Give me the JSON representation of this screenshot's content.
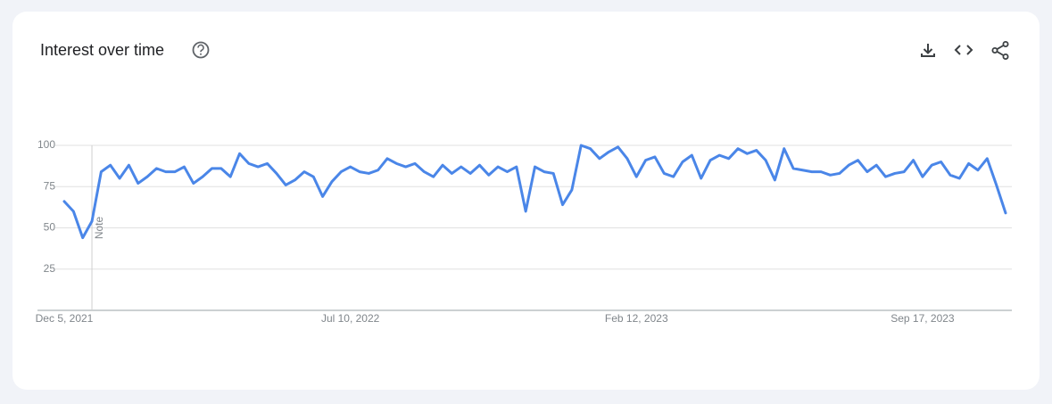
{
  "chart_data": {
    "type": "line",
    "title": "Interest over time",
    "categories": [
      "Dec 5, 2021",
      null,
      null,
      null,
      null,
      null,
      null,
      null,
      null,
      null,
      null,
      null,
      null,
      null,
      null,
      null,
      null,
      null,
      null,
      null,
      null,
      null,
      null,
      null,
      null,
      null,
      null,
      null,
      null,
      null,
      null,
      "Jul 10, 2022",
      null,
      null,
      null,
      null,
      null,
      null,
      null,
      null,
      null,
      null,
      null,
      null,
      null,
      null,
      null,
      null,
      null,
      null,
      null,
      null,
      null,
      null,
      null,
      null,
      null,
      null,
      null,
      null,
      null,
      null,
      "Feb 12, 2023",
      null,
      null,
      null,
      null,
      null,
      null,
      null,
      null,
      null,
      null,
      null,
      null,
      null,
      null,
      null,
      null,
      null,
      null,
      null,
      null,
      null,
      null,
      null,
      null,
      null,
      null,
      null,
      null,
      null,
      null,
      "Sep 17, 2023",
      null,
      null,
      null,
      null,
      null,
      null,
      null,
      null,
      null
    ],
    "values": [
      66,
      60,
      44,
      54,
      84,
      88,
      80,
      88,
      77,
      81,
      86,
      84,
      84,
      87,
      77,
      81,
      86,
      86,
      81,
      95,
      89,
      87,
      89,
      83,
      76,
      79,
      84,
      81,
      69,
      78,
      84,
      87,
      84,
      83,
      85,
      92,
      89,
      87,
      89,
      84,
      81,
      88,
      83,
      87,
      83,
      88,
      82,
      87,
      84,
      87,
      60,
      87,
      84,
      83,
      64,
      73,
      100,
      98,
      92,
      96,
      99,
      92,
      81,
      91,
      93,
      83,
      81,
      90,
      94,
      80,
      91,
      94,
      92,
      98,
      95,
      97,
      91,
      79,
      98,
      86,
      85,
      84,
      84,
      82,
      83,
      88,
      91,
      84,
      88,
      81,
      83,
      84,
      91,
      81,
      88,
      90,
      82,
      80,
      89,
      85,
      92,
      76,
      59
    ],
    "color": "#4a86e8",
    "ylim": [
      0,
      100
    ],
    "yticks": [
      25,
      50,
      75,
      100
    ],
    "grid": true,
    "annotation": "Note"
  }
}
